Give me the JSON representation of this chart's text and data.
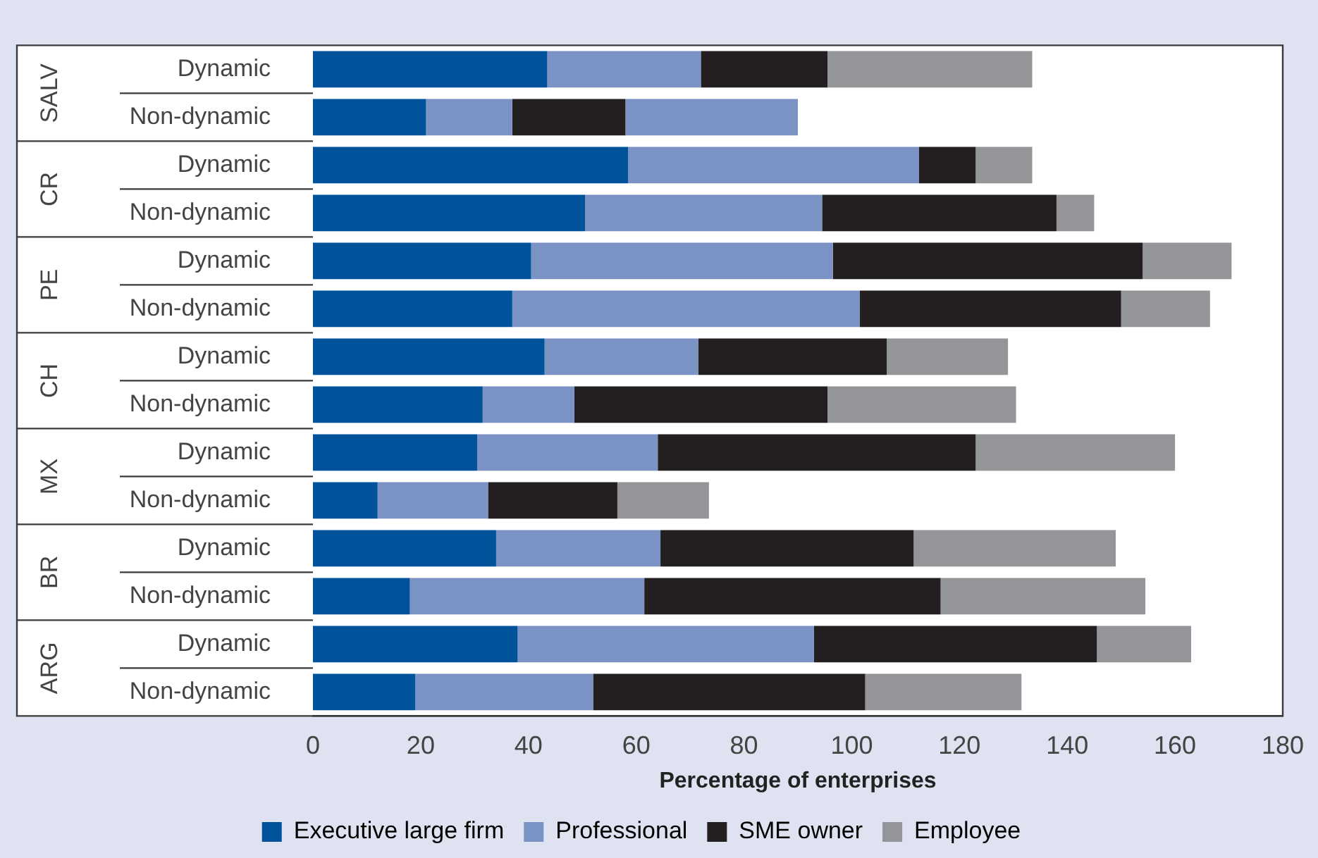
{
  "chart_data": {
    "type": "bar",
    "orientation": "horizontal",
    "stacked": true,
    "xlabel": "Percentage of enterprises",
    "categories": [
      "Dynamic",
      "Non-dynamic",
      "Dynamic",
      "Non-dynamic",
      "Dynamic",
      "Non-dynamic",
      "Dynamic",
      "Non-dynamic",
      "Dynamic",
      "Non-dynamic",
      "Dynamic",
      "Non-dynamic",
      "Dynamic",
      "Non-dynamic"
    ],
    "annotations": [
      "SALV",
      "CR",
      "PE",
      "CH",
      "MX",
      "BR",
      "ARG"
    ],
    "series": [
      {
        "name": "Executive large firm",
        "color": "#00529b",
        "values": [
          43.5,
          21,
          58.5,
          50.5,
          40.5,
          37,
          43,
          31.5,
          30.5,
          12,
          34,
          18,
          38,
          19
        ]
      },
      {
        "name": "Professional",
        "color": "#7a92c4",
        "values": [
          28.5,
          16,
          54,
          44,
          56,
          64.5,
          28.5,
          17,
          33.5,
          20.5,
          30.5,
          43.5,
          55,
          33
        ]
      },
      {
        "name": "SME owner",
        "color": "#231f20",
        "values": [
          23.5,
          21,
          10.5,
          43.5,
          57.5,
          48.5,
          35,
          47,
          59,
          24,
          47,
          55,
          52.5,
          50.5
        ]
      },
      {
        "name": "Employee",
        "color": "#939598",
        "colors": [
          "#939598",
          "#7a92c4",
          "#939598",
          "#939598",
          "#939598",
          "#939598",
          "#939598",
          "#939598",
          "#939598",
          "#939598",
          "#939598",
          "#939598",
          "#939598",
          "#939598"
        ],
        "values": [
          38,
          32,
          10.5,
          7,
          16.5,
          16.5,
          22.5,
          35,
          37,
          17,
          37.5,
          38,
          17.5,
          29
        ]
      }
    ],
    "xlim": [
      0,
      180
    ],
    "xticks": [
      0,
      20,
      40,
      60,
      80,
      100,
      120,
      140,
      160,
      180
    ],
    "legend": "bottom"
  }
}
